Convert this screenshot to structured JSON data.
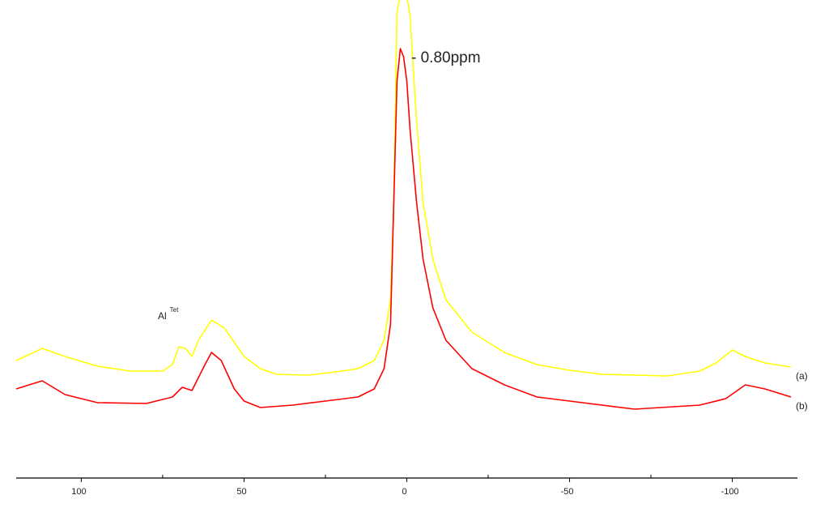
{
  "chart_data": {
    "type": "line",
    "annotations": [
      "- 0.80ppm",
      "Al",
      "Tet"
    ],
    "xlim": [
      120,
      -120
    ],
    "xticks": [
      100,
      50,
      0,
      -50,
      -100
    ],
    "ylim": [
      0,
      590
    ],
    "series": [
      {
        "name": "(a)",
        "color": "#ffff00",
        "x": [
          120,
          112,
          105,
          95,
          85,
          75,
          72,
          70,
          68,
          66,
          64,
          60,
          56,
          50,
          45,
          40,
          30,
          20,
          15,
          10,
          7,
          5,
          4,
          3,
          1,
          -1,
          -3,
          -5,
          -8,
          -12,
          -20,
          -30,
          -40,
          -50,
          -60,
          -80,
          -90,
          -95,
          -100,
          -104,
          -110,
          -118
        ],
        "values": [
          145,
          160,
          150,
          138,
          132,
          132,
          140,
          162,
          160,
          150,
          170,
          195,
          185,
          150,
          135,
          128,
          127,
          132,
          135,
          145,
          170,
          220,
          340,
          575,
          620,
          570,
          440,
          340,
          270,
          220,
          180,
          155,
          140,
          133,
          128,
          126,
          132,
          142,
          158,
          150,
          142,
          137
        ]
      },
      {
        "name": "(b)",
        "color": "#ff0000",
        "x": [
          120,
          112,
          105,
          95,
          80,
          72,
          69,
          66,
          62,
          60,
          57,
          53,
          50,
          45,
          35,
          25,
          15,
          10,
          7,
          5,
          4,
          3,
          2,
          1,
          0,
          -1,
          -3,
          -5,
          -8,
          -12,
          -20,
          -30,
          -40,
          -50,
          -70,
          -90,
          -98,
          -104,
          -110,
          -118
        ],
        "values": [
          110,
          120,
          103,
          93,
          92,
          100,
          112,
          108,
          140,
          155,
          145,
          110,
          95,
          87,
          90,
          95,
          100,
          110,
          135,
          190,
          340,
          490,
          530,
          520,
          490,
          430,
          340,
          270,
          210,
          170,
          135,
          115,
          100,
          95,
          85,
          90,
          98,
          115,
          110,
          100
        ]
      }
    ]
  }
}
